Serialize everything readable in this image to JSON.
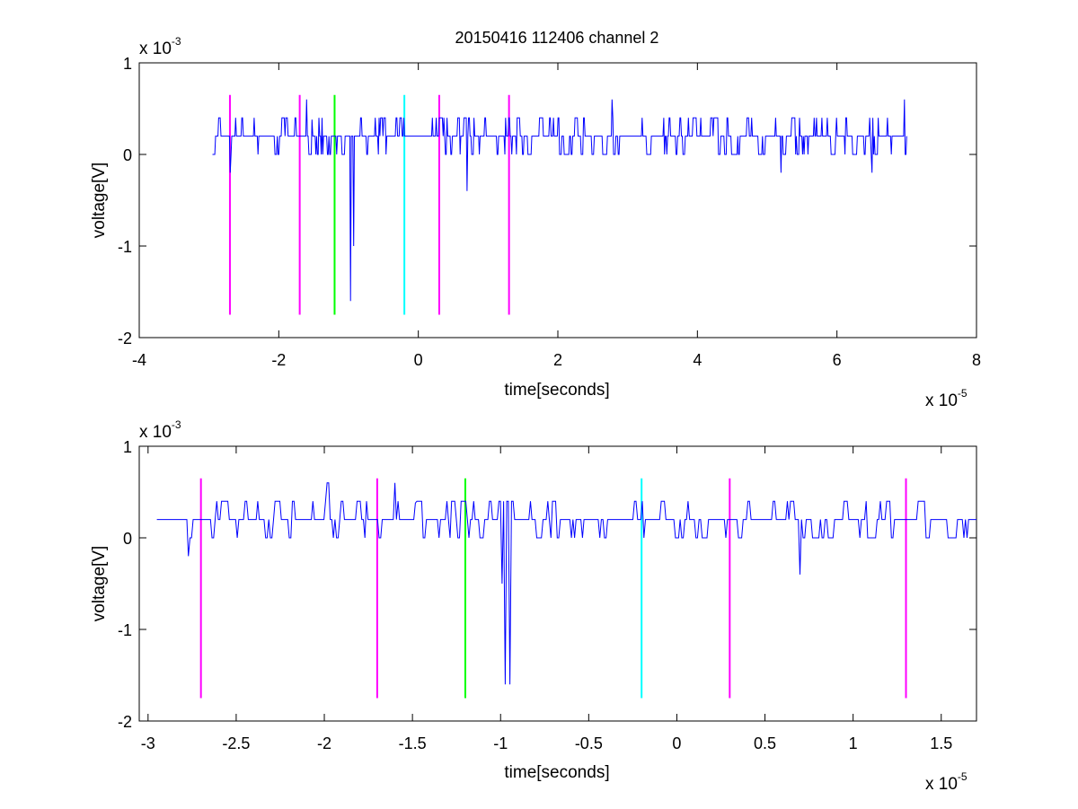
{
  "figure": {
    "title": "20150416 112406 channel 2"
  },
  "chart_data": [
    {
      "type": "line",
      "xlabel": "time[seconds]",
      "ylabel": "voltage[V]",
      "x_exponent_label": "x 10",
      "x_exponent": "-5",
      "y_exponent_label": "x 10",
      "y_exponent": "-3",
      "xlim": [
        -4,
        8
      ],
      "ylim": [
        -2,
        1
      ],
      "xticks": [
        "-4",
        "-2",
        "0",
        "2",
        "4",
        "6",
        "8"
      ],
      "yticks": [
        "1",
        "0",
        "-1",
        "-2"
      ],
      "grid": false,
      "series": [
        {
          "color": "#0000ff",
          "x_range": [
            -2.95,
            7.0
          ],
          "baseline": 0.2,
          "levels": [
            0,
            0.2,
            0.4
          ],
          "spikes": [
            {
              "x": -2.7,
              "y": -0.2
            },
            {
              "x": -1.6,
              "y": 0.6
            },
            {
              "x": -1.52,
              "y": 0.38
            },
            {
              "x": -0.97,
              "y": -1.6
            },
            {
              "x": -0.93,
              "y": -1.0
            },
            {
              "x": 0.7,
              "y": -0.4
            },
            {
              "x": 2.78,
              "y": 0.6
            },
            {
              "x": 6.97,
              "y": 0.6
            },
            {
              "x": 5.2,
              "y": -0.2
            },
            {
              "x": 6.5,
              "y": -0.2
            }
          ]
        }
      ],
      "markers": [
        {
          "x": -2.7,
          "color": "#ff00ff"
        },
        {
          "x": -1.7,
          "color": "#ff00ff"
        },
        {
          "x": -1.2,
          "color": "#00ff00"
        },
        {
          "x": -0.2,
          "color": "#00ffff"
        },
        {
          "x": 0.3,
          "color": "#ff00ff"
        },
        {
          "x": 1.3,
          "color": "#ff00ff"
        }
      ],
      "marker_y_range": [
        -1.75,
        0.65
      ]
    },
    {
      "type": "line",
      "xlabel": "time[seconds]",
      "ylabel": "voltage[V]",
      "x_exponent_label": "x 10",
      "x_exponent": "-5",
      "y_exponent_label": "x 10",
      "y_exponent": "-3",
      "xlim": [
        -3.05,
        1.7
      ],
      "ylim": [
        -2,
        1
      ],
      "xticks": [
        "-3",
        "-2.5",
        "-2",
        "-1.5",
        "-1",
        "-0.5",
        "0",
        "0.5",
        "1",
        "1.5"
      ],
      "yticks": [
        "1",
        "0",
        "-1",
        "-2"
      ],
      "grid": false,
      "series": [
        {
          "color": "#0000ff",
          "x_range": [
            -2.95,
            1.7
          ],
          "baseline": 0.2,
          "levels": [
            0,
            0.2,
            0.4
          ],
          "spikes": [
            {
              "x": -2.77,
              "y": -0.2
            },
            {
              "x": -1.98,
              "y": 0.6
            },
            {
              "x": -1.6,
              "y": 0.6
            },
            {
              "x": -1.48,
              "y": 0.38
            },
            {
              "x": -0.97,
              "y": -1.6
            },
            {
              "x": -0.95,
              "y": -1.6
            },
            {
              "x": -0.99,
              "y": -0.5
            },
            {
              "x": 0.7,
              "y": -0.4
            },
            {
              "x": 1.37,
              "y": 0.4
            }
          ]
        }
      ],
      "markers": [
        {
          "x": -2.7,
          "color": "#ff00ff"
        },
        {
          "x": -1.7,
          "color": "#ff00ff"
        },
        {
          "x": -1.2,
          "color": "#00ff00"
        },
        {
          "x": -0.2,
          "color": "#00ffff"
        },
        {
          "x": 0.3,
          "color": "#ff00ff"
        },
        {
          "x": 1.3,
          "color": "#ff00ff"
        }
      ],
      "marker_y_range": [
        -1.75,
        0.65
      ]
    }
  ]
}
